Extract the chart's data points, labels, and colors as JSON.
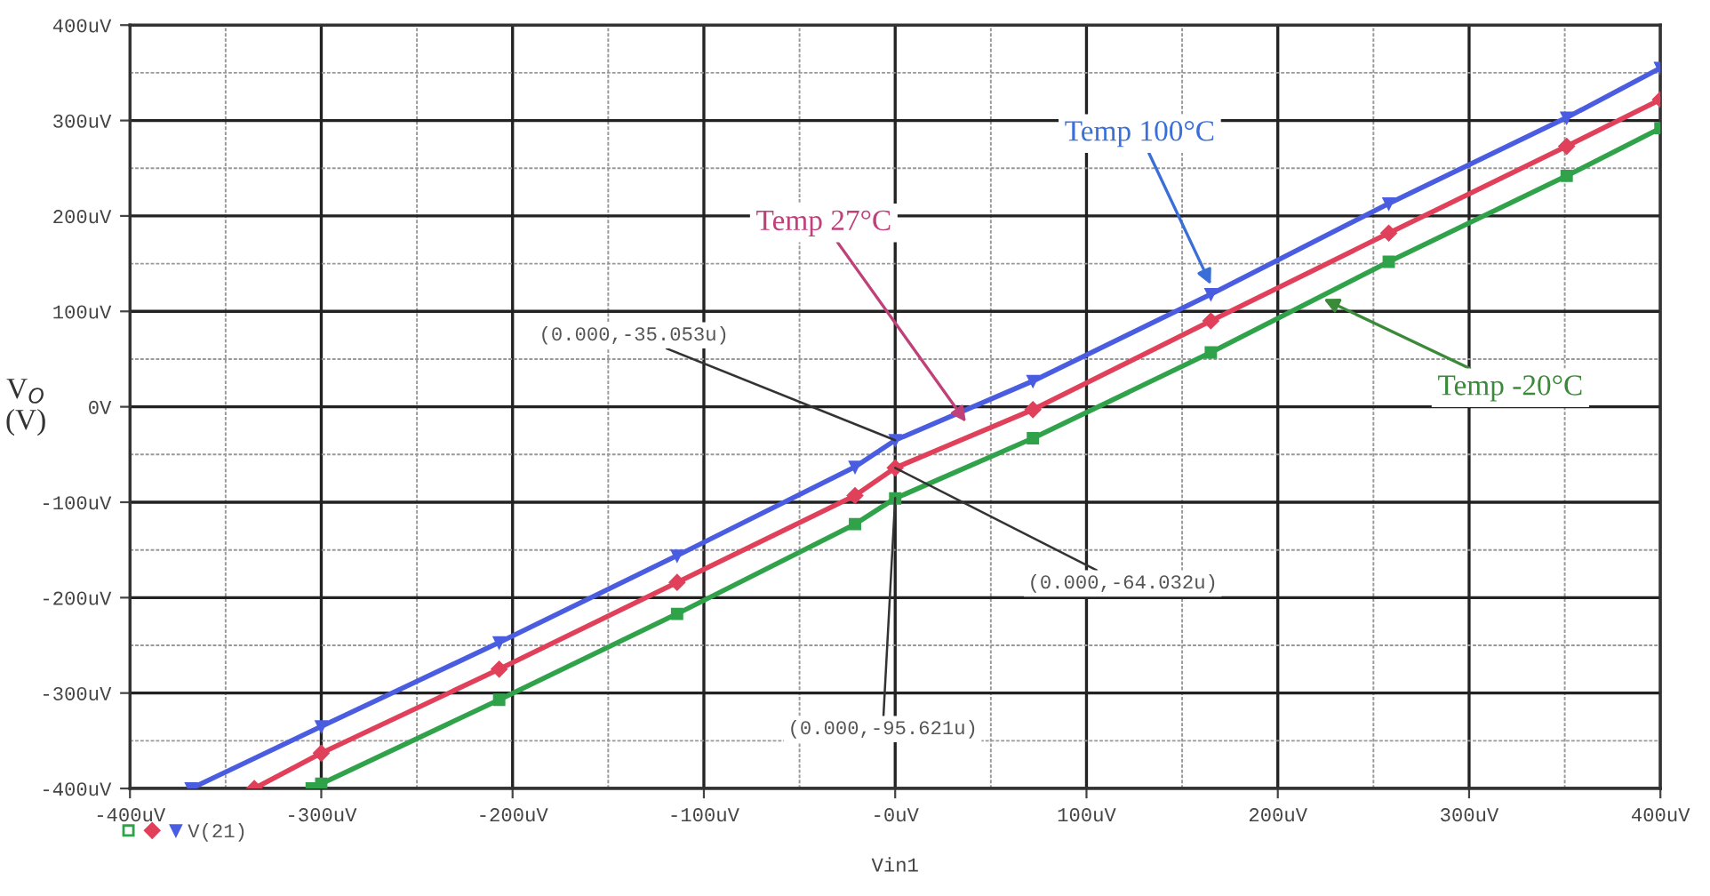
{
  "chart_data": {
    "type": "line",
    "xlabel": "Vin1",
    "ylabel": "V$_{O}$\n(V)",
    "xlim": [
      -400,
      400
    ],
    "ylim": [
      -400,
      400
    ],
    "xticks": [
      {
        "value": -400,
        "label": "-400uV"
      },
      {
        "value": -300,
        "label": "-300uV"
      },
      {
        "value": -200,
        "label": "-200uV"
      },
      {
        "value": -100,
        "label": "-100uV"
      },
      {
        "value": 0,
        "label": "-0uV"
      },
      {
        "value": 100,
        "label": "100uV"
      },
      {
        "value": 200,
        "label": "200uV"
      },
      {
        "value": 300,
        "label": "300uV"
      },
      {
        "value": 400,
        "label": "400uV"
      }
    ],
    "yticks": [
      {
        "value": -400,
        "label": "-400uV"
      },
      {
        "value": -300,
        "label": "-300uV"
      },
      {
        "value": -200,
        "label": "-200uV"
      },
      {
        "value": -100,
        "label": "-100uV"
      },
      {
        "value": 0,
        "label": "0V"
      },
      {
        "value": 100,
        "label": "100uV"
      },
      {
        "value": 200,
        "label": "200uV"
      },
      {
        "value": 300,
        "label": "300uV"
      },
      {
        "value": 400,
        "label": "400uV"
      }
    ],
    "grid": true,
    "legend": "bottom left",
    "series": [
      {
        "color": "#2fa24a",
        "marker": "square",
        "x": [
          -305,
          -300,
          -207,
          -114,
          -21,
          0,
          72,
          165,
          258,
          351,
          400
        ],
        "values": [
          -400,
          -395,
          -307,
          -217,
          -123,
          -96,
          -33,
          57,
          152,
          242,
          292
        ]
      },
      {
        "color": "#e0405a",
        "marker": "diamond",
        "x": [
          -335,
          -300,
          -207,
          -114,
          -21,
          0,
          72,
          165,
          258,
          351,
          400
        ],
        "values": [
          -400,
          -363,
          -275,
          -184,
          -93,
          -64,
          -3,
          90,
          182,
          273,
          322
        ]
      },
      {
        "name": "V(21)",
        "color": "#4a5de0",
        "marker": "triangle",
        "x": [
          -368,
          -300,
          -207,
          -114,
          -21,
          0,
          72,
          165,
          258,
          351,
          400
        ],
        "values": [
          -400,
          -335,
          -247,
          -156,
          -63,
          -35,
          27,
          118,
          213,
          303,
          355
        ]
      }
    ],
    "annotations": [
      {
        "text": "Temp 100°C",
        "x": 165,
        "y": 128
      },
      {
        "text": "Temp 27°C",
        "x": 37,
        "y": -16
      },
      {
        "text": "Temp -20°C",
        "x": 224,
        "y": 113
      },
      {
        "text": "(0.000,-35.053u)",
        "x": 0,
        "y": -35.053
      },
      {
        "text": "(0.000,-64.032u)",
        "x": 0,
        "y": -64.032
      },
      {
        "text": "(0.000,-95.621u)",
        "x": 0,
        "y": -95.621
      }
    ]
  }
}
